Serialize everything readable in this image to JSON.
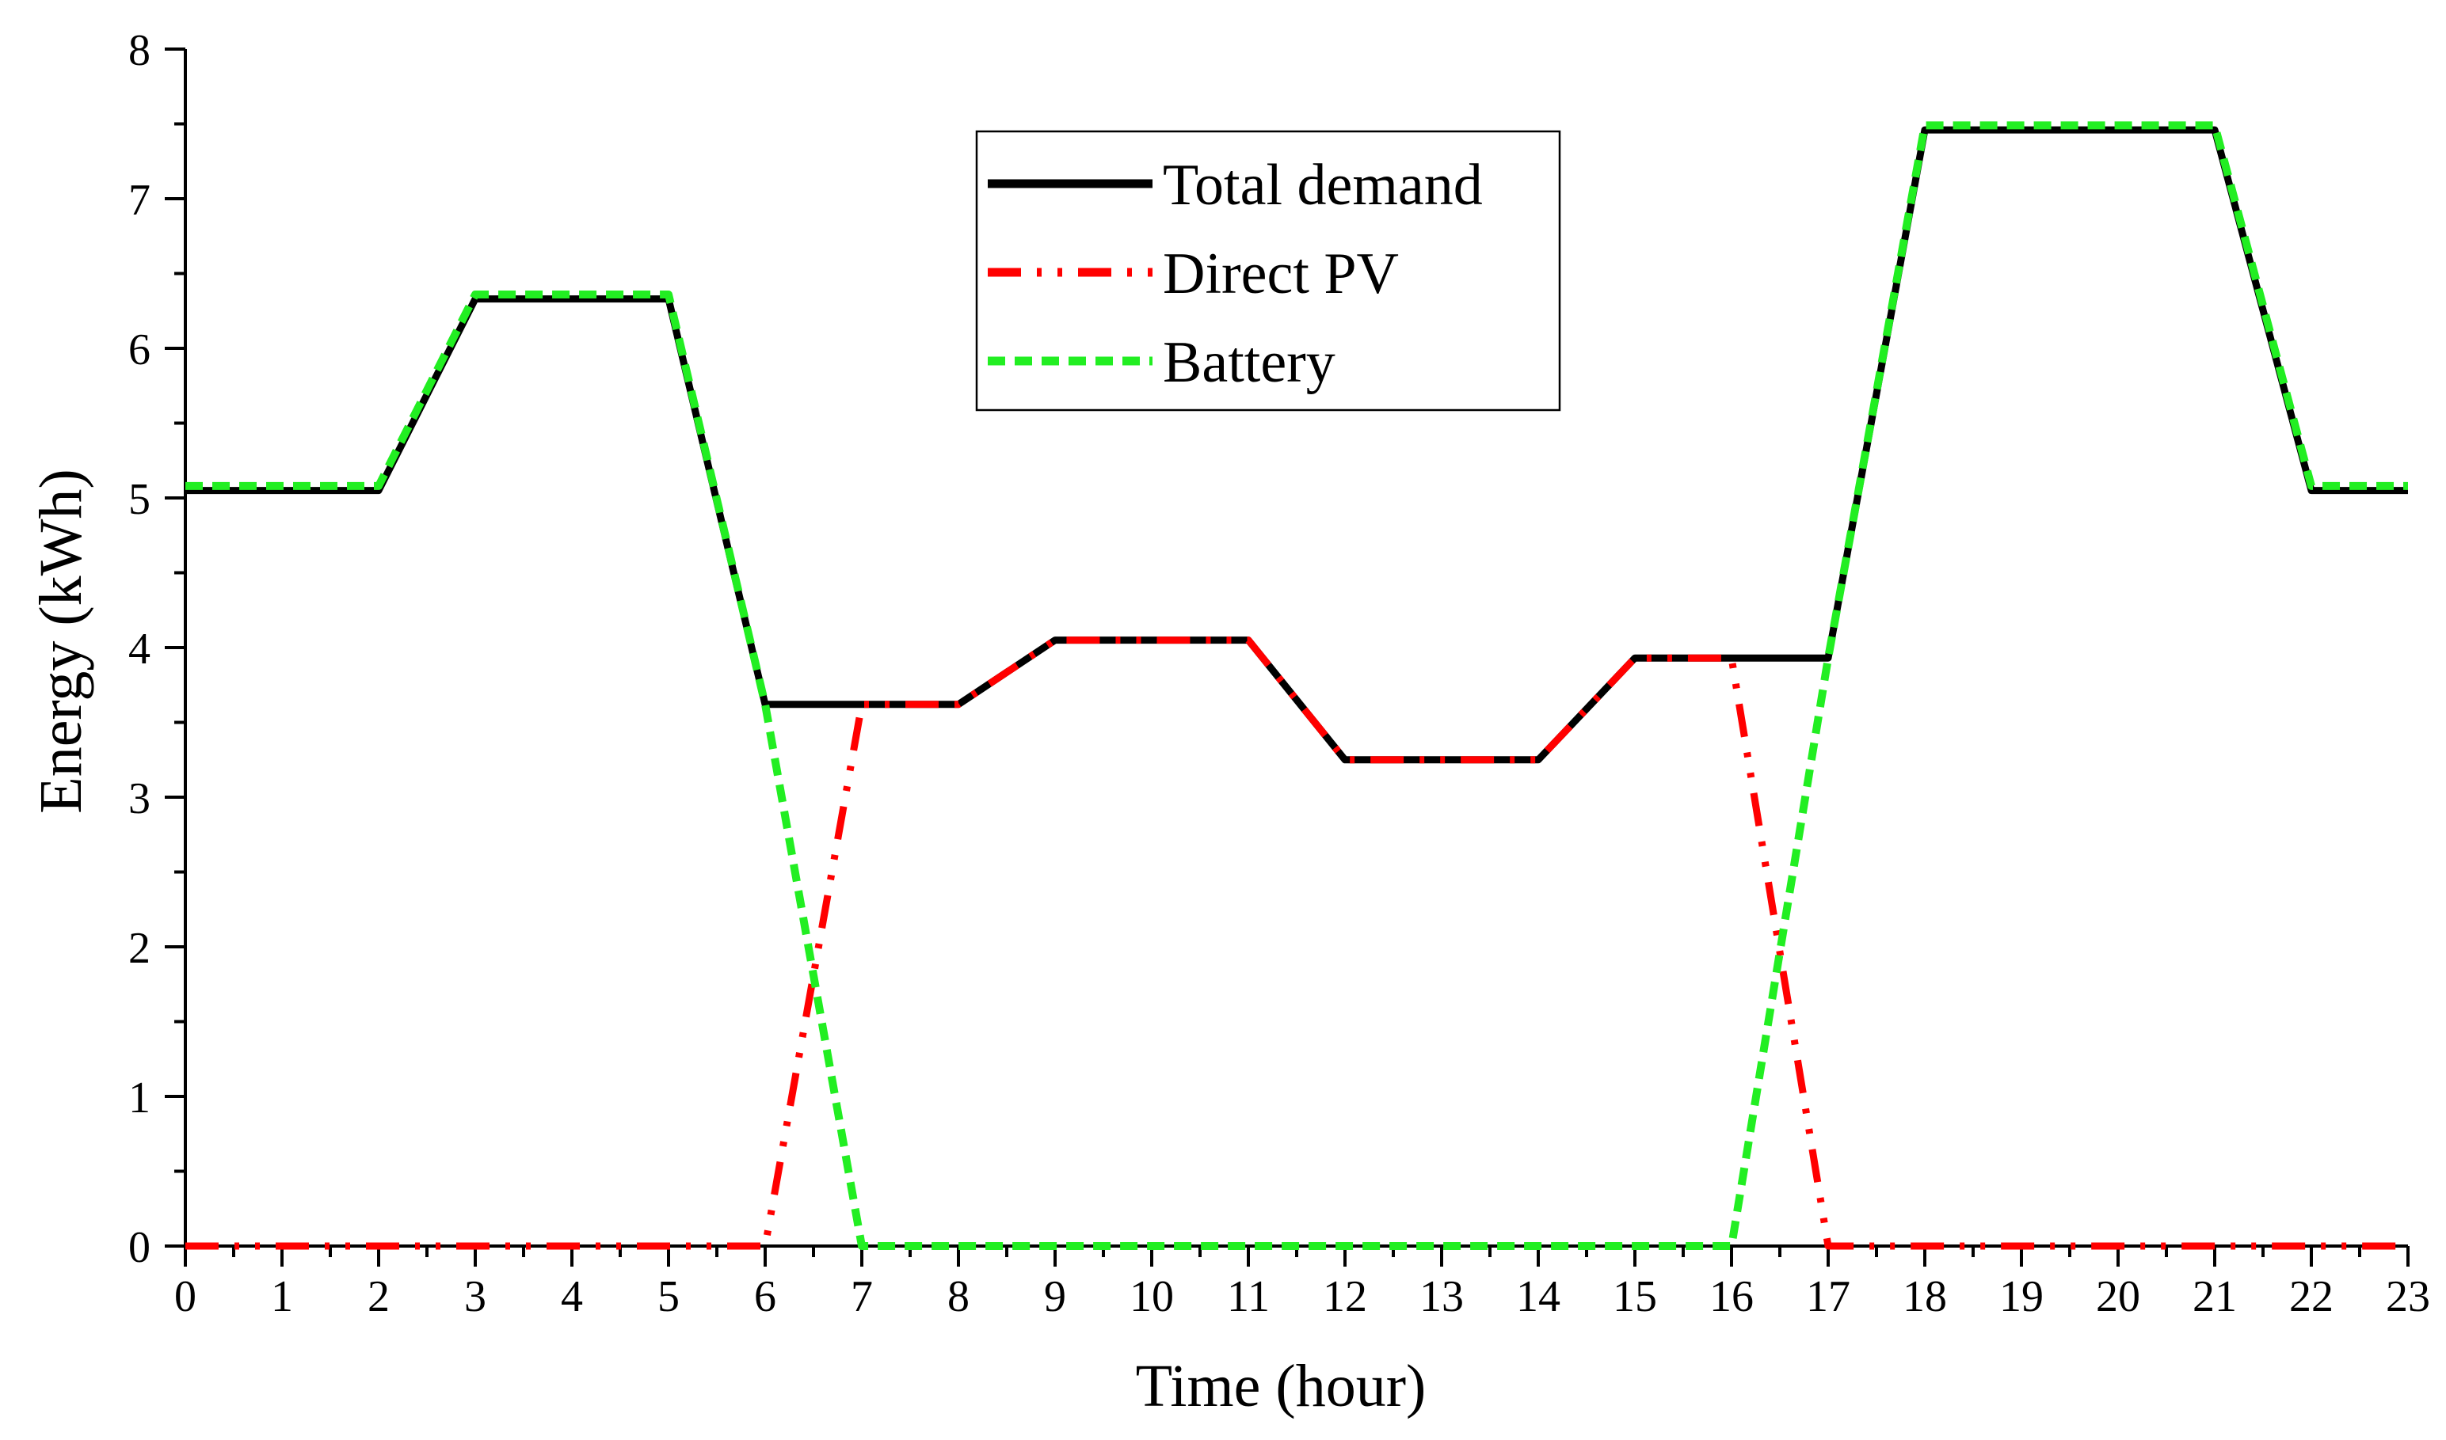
{
  "chart_data": {
    "type": "line",
    "title": "",
    "xlabel": "Time (hour)",
    "ylabel": "Energy (kWh)",
    "xlim": [
      0,
      23
    ],
    "ylim": [
      0,
      8
    ],
    "xticks": [
      0,
      1,
      2,
      3,
      4,
      5,
      6,
      7,
      8,
      9,
      10,
      11,
      12,
      13,
      14,
      15,
      16,
      17,
      18,
      19,
      20,
      21,
      22,
      23
    ],
    "yticks": [
      0,
      1,
      2,
      3,
      4,
      5,
      6,
      7,
      8
    ],
    "grid": false,
    "legend_position": "top-center",
    "series": [
      {
        "name": "Total demand",
        "color": "#000000",
        "style": "solid",
        "x": [
          0,
          2,
          3,
          5,
          6,
          8,
          9,
          11,
          12,
          14,
          15,
          17,
          18,
          21,
          22,
          23
        ],
        "y": [
          5.05,
          5.05,
          6.33,
          6.33,
          3.62,
          3.62,
          4.05,
          4.05,
          3.25,
          3.25,
          3.93,
          3.93,
          7.46,
          7.46,
          5.05,
          5.05
        ]
      },
      {
        "name": "Direct PV",
        "color": "#ff0000",
        "style": "dash-dot-dot",
        "x": [
          0,
          5,
          6,
          7,
          8,
          9,
          11,
          12,
          14,
          15,
          16,
          17,
          23
        ],
        "y": [
          0,
          0,
          0,
          3.62,
          3.62,
          4.05,
          4.05,
          3.25,
          3.25,
          3.93,
          3.93,
          0,
          0
        ]
      },
      {
        "name": "Battery",
        "color": "#22ee22",
        "style": "dashed",
        "x": [
          0,
          2,
          3,
          5,
          6,
          7,
          16,
          17,
          18,
          21,
          22,
          23
        ],
        "y": [
          5.08,
          5.08,
          6.36,
          6.36,
          3.62,
          0,
          0,
          3.93,
          7.49,
          7.49,
          5.08,
          5.08
        ]
      }
    ]
  }
}
